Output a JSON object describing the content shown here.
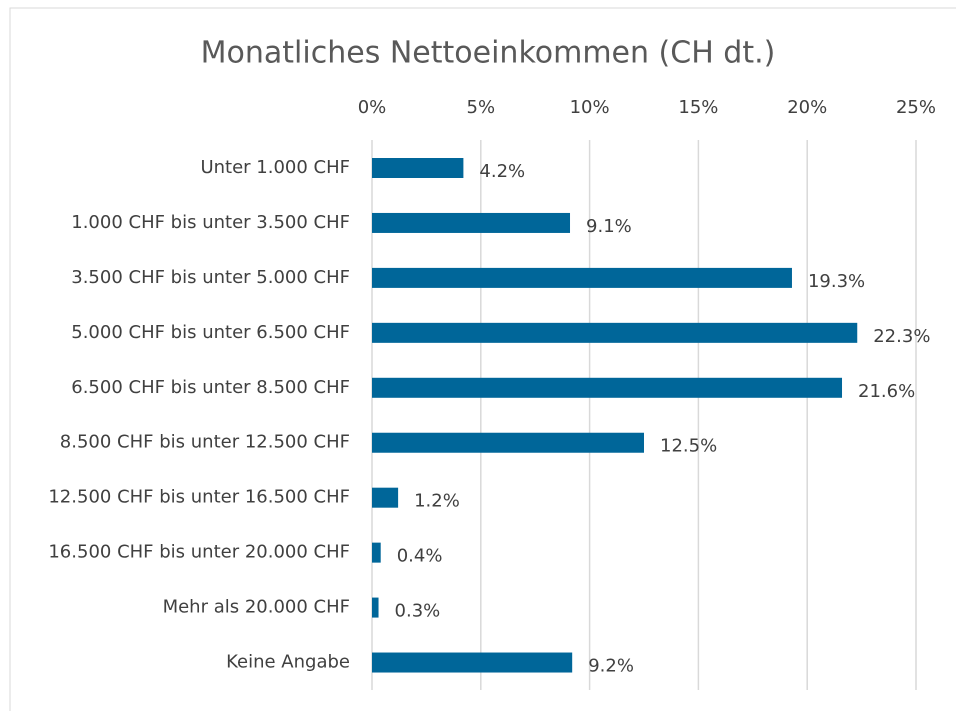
{
  "chart_data": {
    "type": "bar",
    "orientation": "horizontal",
    "title": "Monatliches Nettoeinkommen (CH dt.)",
    "categories": [
      "Unter 1.000 CHF",
      "1.000 CHF bis unter 3.500 CHF",
      "3.500 CHF bis unter 5.000 CHF",
      "5.000 CHF bis unter 6.500 CHF",
      "6.500 CHF bis unter 8.500 CHF",
      "8.500 CHF bis unter 12.500 CHF",
      "12.500 CHF bis unter 16.500 CHF",
      "16.500 CHF bis unter 20.000 CHF",
      "Mehr als 20.000 CHF",
      "Keine Angabe"
    ],
    "values": [
      4.2,
      9.1,
      19.3,
      22.3,
      21.6,
      12.5,
      1.2,
      0.4,
      0.3,
      9.2
    ],
    "value_labels": [
      "4.2%",
      "9.1%",
      "19.3%",
      "22.3%",
      "21.6%",
      "12.5%",
      "1.2%",
      "0.4%",
      "0.3%",
      "9.2%"
    ],
    "color": "#006699",
    "xlim": [
      0,
      25
    ],
    "xticks": [
      {
        "value": 0,
        "label": "0%"
      },
      {
        "value": 5,
        "label": "5%"
      },
      {
        "value": 10,
        "label": "10%"
      },
      {
        "value": 15,
        "label": "15%"
      },
      {
        "value": 20,
        "label": "20%"
      },
      {
        "value": 25,
        "label": "25%"
      }
    ],
    "grid": true
  }
}
